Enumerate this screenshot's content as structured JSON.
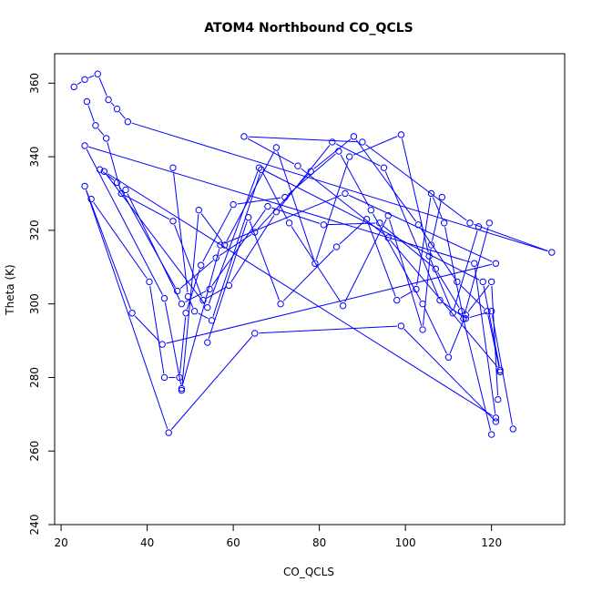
{
  "chart_data": {
    "type": "line",
    "title": "ATOM4 Northbound CO_QCLS",
    "xlabel": "CO_QCLS",
    "ylabel": "Theta (K)",
    "xlim": [
      18.5,
      137
    ],
    "ylim": [
      240,
      368
    ],
    "xticks": [
      20,
      40,
      60,
      80,
      100,
      120
    ],
    "yticks": [
      240,
      260,
      280,
      300,
      320,
      340,
      360
    ],
    "xtick_labels": [
      "20",
      "40",
      "60",
      "80",
      "100",
      "120"
    ],
    "ytick_labels": [
      "240",
      "260",
      "280",
      "300",
      "320",
      "340",
      "360"
    ],
    "grid": false,
    "legend": "none",
    "color": "#0000ff",
    "series": [
      {
        "x": [
          23,
          25.5,
          28.5,
          31,
          33,
          35.5,
          134,
          115,
          90,
          62.5,
          75,
          96,
          122,
          118,
          66,
          54,
          30,
          121,
          116,
          25.5,
          44,
          48,
          57,
          86,
          121,
          43.5,
          36.5,
          25.5,
          45,
          65,
          99,
          121
        ],
        "y": [
          359,
          361,
          362.5,
          355.5,
          353,
          349.5,
          314,
          322,
          344,
          345.5,
          337.5,
          318,
          282,
          306,
          337,
          299,
          336,
          269,
          311,
          343,
          301.5,
          277,
          316,
          330,
          311,
          289,
          297.5,
          332,
          265,
          292,
          294,
          268
        ]
      },
      {
        "x": [
          26,
          28,
          30.5,
          34,
          46,
          53,
          59,
          70,
          83,
          95,
          108,
          114,
          120,
          125
        ],
        "y": [
          355,
          348.5,
          345,
          330,
          322.5,
          301,
          305,
          325,
          344,
          337,
          301,
          296,
          298,
          266
        ]
      },
      {
        "x": [
          29,
          33,
          47,
          56,
          65,
          78,
          88,
          103,
          112,
          119,
          122
        ],
        "y": [
          336.5,
          333,
          303.5,
          312.5,
          319.5,
          336,
          345.5,
          321.5,
          306,
          298,
          281.5
        ]
      },
      {
        "x": [
          27,
          40.5,
          44,
          47.5,
          49,
          52.5,
          60,
          72,
          84.5,
          92,
          104,
          110,
          114,
          120,
          121.5
        ],
        "y": [
          328.5,
          306,
          280,
          280,
          297.5,
          310.5,
          327,
          329,
          341.5,
          325.5,
          300,
          285.5,
          297,
          306,
          274
        ]
      },
      {
        "x": [
          35,
          48,
          54.5,
          68,
          81,
          94,
          107,
          113,
          120
        ],
        "y": [
          331,
          300,
          304,
          326.5,
          321.5,
          322,
          309.5,
          298,
          264.5
        ]
      },
      {
        "x": [
          46,
          49.5,
          51,
          55,
          66.5,
          73,
          85.5,
          96,
          104,
          106,
          108.5
        ],
        "y": [
          337,
          302,
          298,
          295.5,
          336.5,
          322,
          299.5,
          324,
          293,
          316,
          329
        ]
      },
      {
        "x": [
          48,
          52,
          58,
          70,
          79,
          87,
          99,
          105.5,
          111,
          117
        ],
        "y": [
          276.5,
          325.5,
          316,
          342.5,
          311,
          340,
          346,
          313,
          297.5,
          321
        ]
      },
      {
        "x": [
          54,
          63.5,
          71,
          84,
          91,
          98,
          102.5,
          106,
          109,
          113.5,
          119.5
        ],
        "y": [
          289.5,
          323.5,
          300,
          315.5,
          323,
          301,
          304,
          330,
          322,
          296,
          322
        ]
      }
    ]
  }
}
